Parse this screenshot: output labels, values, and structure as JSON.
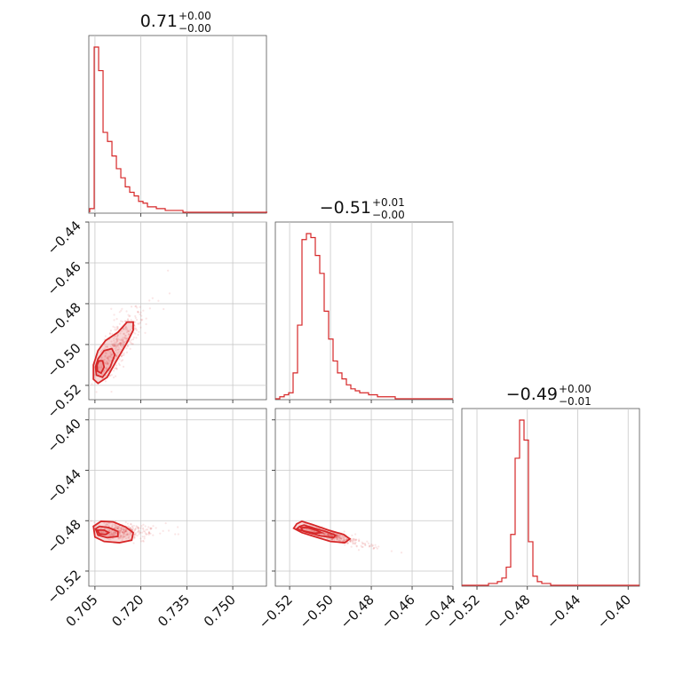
{
  "colors": {
    "series": "#d62728",
    "grid": "#c8c8c8",
    "frame": "#555555"
  },
  "chart_data": {
    "type": "corner",
    "parameters": [
      {
        "range": [
          0.703,
          0.761
        ],
        "ticks": [
          0.705,
          0.72,
          0.735,
          0.75
        ],
        "tick_labels": [
          "0.705",
          "0.720",
          "0.735",
          "0.750"
        ],
        "title": {
          "main": "0.71",
          "upper": "+0.00",
          "lower": "−0.00"
        }
      },
      {
        "range": [
          -0.527,
          -0.44
        ],
        "ticks": [
          -0.52,
          -0.5,
          -0.48,
          -0.46,
          -0.44
        ],
        "tick_labels": [
          "−0.52",
          "−0.50",
          "−0.48",
          "−0.46",
          "−0.44"
        ],
        "title": {
          "main": "−0.51",
          "upper": "+0.01",
          "lower": "−0.00"
        }
      },
      {
        "range": [
          -0.532,
          -0.391
        ],
        "ticks": [
          -0.52,
          -0.48,
          -0.44,
          -0.4
        ],
        "tick_labels": [
          "−0.52",
          "−0.48",
          "−0.44",
          "−0.40"
        ],
        "title": {
          "main": "−0.49",
          "upper": "+0.00",
          "lower": "−0.01"
        }
      }
    ],
    "histograms": [
      {
        "param": 0,
        "edges_start": 0.7033,
        "bin_width": 0.00145,
        "counts": [
          2,
          91,
          78,
          44,
          39,
          31,
          24,
          19,
          14,
          11,
          9,
          6,
          5,
          3,
          3,
          2,
          2,
          1,
          1,
          1,
          1,
          0,
          0,
          0,
          0,
          0,
          0,
          0,
          0,
          0,
          0,
          0,
          0,
          0,
          0,
          0,
          0,
          0,
          0,
          0
        ]
      },
      {
        "param": 1,
        "edges_start": -0.527,
        "bin_width": 0.002175,
        "counts": [
          0,
          1,
          2,
          3,
          13,
          37,
          80,
          83,
          81,
          72,
          63,
          44,
          30,
          19,
          13,
          10,
          7,
          5,
          4,
          3,
          3,
          2,
          2,
          1,
          1,
          1,
          1,
          0,
          0,
          0,
          0,
          0,
          0,
          0,
          0,
          0,
          0,
          0,
          0,
          0
        ]
      },
      {
        "param": 2,
        "edges_start": -0.532,
        "bin_width": 0.003525,
        "counts": [
          0,
          0,
          0,
          0,
          0,
          0,
          1,
          1,
          2,
          4,
          10,
          28,
          70,
          91,
          80,
          24,
          5,
          2,
          1,
          1,
          0,
          0,
          0,
          0,
          0,
          0,
          0,
          0,
          0,
          0,
          0,
          0,
          0,
          0,
          0,
          0,
          0,
          0,
          0,
          0
        ]
      }
    ],
    "joint": [
      {
        "x_param": 0,
        "y_param": 1,
        "contours": [
          [
            [
              0.7045,
              -0.517
            ],
            [
              0.706,
              -0.519
            ],
            [
              0.709,
              -0.516
            ],
            [
              0.712,
              -0.508
            ],
            [
              0.7155,
              -0.499
            ],
            [
              0.7175,
              -0.493
            ],
            [
              0.7175,
              -0.489
            ],
            [
              0.7155,
              -0.489
            ],
            [
              0.7125,
              -0.494
            ],
            [
              0.7085,
              -0.498
            ],
            [
              0.706,
              -0.503
            ],
            [
              0.7045,
              -0.51
            ]
          ],
          [
            [
              0.7055,
              -0.515
            ],
            [
              0.7075,
              -0.516
            ],
            [
              0.71,
              -0.511
            ],
            [
              0.7115,
              -0.505
            ],
            [
              0.7105,
              -0.502
            ],
            [
              0.708,
              -0.503
            ],
            [
              0.706,
              -0.507
            ],
            [
              0.7052,
              -0.511
            ]
          ],
          [
            [
              0.7058,
              -0.513
            ],
            [
              0.707,
              -0.514
            ],
            [
              0.708,
              -0.511
            ],
            [
              0.7075,
              -0.508
            ],
            [
              0.7063,
              -0.508
            ],
            [
              0.7057,
              -0.51
            ]
          ]
        ]
      },
      {
        "x_param": 0,
        "y_param": 2,
        "contours": [
          [
            [
              0.7045,
              -0.4845
            ],
            [
              0.705,
              -0.493
            ],
            [
              0.708,
              -0.4965
            ],
            [
              0.713,
              -0.4975
            ],
            [
              0.717,
              -0.4955
            ],
            [
              0.7175,
              -0.4895
            ],
            [
              0.715,
              -0.485
            ],
            [
              0.711,
              -0.481
            ],
            [
              0.707,
              -0.4805
            ]
          ],
          [
            [
              0.7052,
              -0.4865
            ],
            [
              0.706,
              -0.4915
            ],
            [
              0.709,
              -0.4935
            ],
            [
              0.7125,
              -0.4925
            ],
            [
              0.7125,
              -0.4885
            ],
            [
              0.7095,
              -0.4855
            ],
            [
              0.7065,
              -0.4845
            ]
          ],
          [
            [
              0.7058,
              -0.4875
            ],
            [
              0.7065,
              -0.4905
            ],
            [
              0.7085,
              -0.491
            ],
            [
              0.7095,
              -0.4895
            ],
            [
              0.708,
              -0.4875
            ]
          ]
        ]
      },
      {
        "x_param": 1,
        "y_param": 2,
        "contours": [
          [
            [
              -0.5165,
              -0.4825
            ],
            [
              -0.518,
              -0.486
            ],
            [
              -0.514,
              -0.4895
            ],
            [
              -0.508,
              -0.4925
            ],
            [
              -0.5,
              -0.4965
            ],
            [
              -0.493,
              -0.4975
            ],
            [
              -0.4905,
              -0.4945
            ],
            [
              -0.4935,
              -0.491
            ],
            [
              -0.501,
              -0.4875
            ],
            [
              -0.509,
              -0.483
            ],
            [
              -0.514,
              -0.4805
            ]
          ],
          [
            [
              -0.515,
              -0.4845
            ],
            [
              -0.5165,
              -0.4865
            ],
            [
              -0.512,
              -0.489
            ],
            [
              -0.505,
              -0.492
            ],
            [
              -0.4985,
              -0.4935
            ],
            [
              -0.4975,
              -0.4915
            ],
            [
              -0.5025,
              -0.4885
            ],
            [
              -0.509,
              -0.4855
            ],
            [
              -0.513,
              -0.4835
            ]
          ],
          [
            [
              -0.5145,
              -0.4855
            ],
            [
              -0.5135,
              -0.488
            ],
            [
              -0.508,
              -0.49
            ],
            [
              -0.5045,
              -0.4895
            ],
            [
              -0.507,
              -0.4875
            ],
            [
              -0.5115,
              -0.4855
            ]
          ]
        ]
      }
    ],
    "scatter_spread": [
      {
        "x_param": 0,
        "y_param": 1,
        "n": 360,
        "x_center": 0.711,
        "x_sd": 0.0045,
        "y_center": -0.503,
        "y_sd": 0.0095,
        "slope": 1.8
      },
      {
        "x_param": 0,
        "y_param": 2,
        "n": 320,
        "x_center": 0.712,
        "x_sd": 0.0055,
        "y_center": -0.4885,
        "y_sd": 0.0055,
        "slope": 0.0
      },
      {
        "x_param": 1,
        "y_param": 2,
        "n": 320,
        "x_center": -0.502,
        "x_sd": 0.0085,
        "y_center": -0.4905,
        "y_sd": 0.003,
        "slope": -0.45
      }
    ],
    "grid": true
  }
}
